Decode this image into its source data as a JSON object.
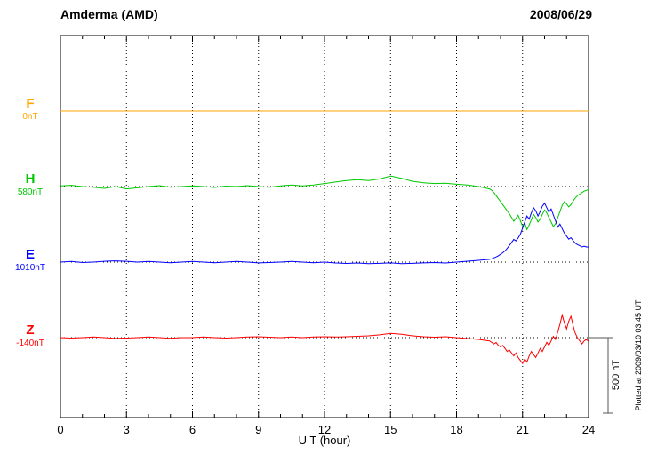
{
  "header": {
    "station": "Amderma (AMD)",
    "date": "2008/06/29"
  },
  "axis": {
    "xlabel": "U T (hour)",
    "x_ticks": [
      0,
      3,
      6,
      9,
      12,
      15,
      18,
      21,
      24
    ],
    "x_min": 0,
    "x_max": 24
  },
  "scale_bar": {
    "label": "500 nT",
    "nt": 500
  },
  "footer_note": "Plotted at 2009/03/10 03:45 UT",
  "chart_data": {
    "type": "line",
    "title": "Amderma (AMD) magnetogram 2008/06/29",
    "xlabel": "U T (hour)",
    "x_unit": "hour",
    "x_range": [
      0,
      24
    ],
    "grid": "dotted vertical every 3h, dotted horizontal at each component baseline",
    "legend_position": "left labels per trace",
    "scale": {
      "nt": 500,
      "px": 85
    },
    "series": [
      {
        "name": "F",
        "label": "F",
        "baseline_label": "0nT",
        "baseline_nt": 0,
        "color": "#FFA500",
        "points": [
          [
            0,
            0
          ],
          [
            24,
            0
          ]
        ]
      },
      {
        "name": "H",
        "label": "H",
        "baseline_label": "580nT",
        "baseline_nt": 580,
        "color": "#00C800",
        "points": [
          [
            0,
            5
          ],
          [
            0.5,
            8
          ],
          [
            1,
            0
          ],
          [
            1.5,
            -5
          ],
          [
            2,
            -12
          ],
          [
            2.5,
            0
          ],
          [
            3,
            -15
          ],
          [
            3.5,
            -8
          ],
          [
            4,
            0
          ],
          [
            4.5,
            6
          ],
          [
            5,
            -5
          ],
          [
            5.5,
            0
          ],
          [
            6,
            5
          ],
          [
            6.5,
            0
          ],
          [
            7,
            -6
          ],
          [
            7.5,
            3
          ],
          [
            8,
            0
          ],
          [
            8.5,
            6
          ],
          [
            9,
            0
          ],
          [
            9.5,
            -4
          ],
          [
            10,
            5
          ],
          [
            10.5,
            10
          ],
          [
            11,
            5
          ],
          [
            11.5,
            10
          ],
          [
            12,
            20
          ],
          [
            12.5,
            30
          ],
          [
            13,
            40
          ],
          [
            13.5,
            45
          ],
          [
            14,
            40
          ],
          [
            14.5,
            50
          ],
          [
            15,
            70
          ],
          [
            15.5,
            55
          ],
          [
            16,
            35
          ],
          [
            16.5,
            25
          ],
          [
            17,
            20
          ],
          [
            17.5,
            22
          ],
          [
            18,
            15
          ],
          [
            18.5,
            10
          ],
          [
            19,
            0
          ],
          [
            19.5,
            -15
          ],
          [
            19.6,
            -25
          ],
          [
            19.7,
            -40
          ],
          [
            19.8,
            -60
          ],
          [
            19.9,
            -80
          ],
          [
            20,
            -100
          ],
          [
            20.1,
            -120
          ],
          [
            20.2,
            -140
          ],
          [
            20.3,
            -160
          ],
          [
            20.4,
            -180
          ],
          [
            20.5,
            -205
          ],
          [
            20.6,
            -230
          ],
          [
            20.7,
            -210
          ],
          [
            20.8,
            -190
          ],
          [
            20.9,
            -225
          ],
          [
            21,
            -265
          ],
          [
            21.1,
            -240
          ],
          [
            21.2,
            -285
          ],
          [
            21.3,
            -255
          ],
          [
            21.4,
            -220
          ],
          [
            21.5,
            -185
          ],
          [
            21.6,
            -205
          ],
          [
            21.7,
            -235
          ],
          [
            21.8,
            -215
          ],
          [
            21.9,
            -185
          ],
          [
            22,
            -155
          ],
          [
            22.1,
            -175
          ],
          [
            22.2,
            -205
          ],
          [
            22.3,
            -235
          ],
          [
            22.4,
            -265
          ],
          [
            22.5,
            -245
          ],
          [
            22.6,
            -205
          ],
          [
            22.7,
            -165
          ],
          [
            22.8,
            -125
          ],
          [
            22.9,
            -100
          ],
          [
            23,
            -115
          ],
          [
            23.1,
            -135
          ],
          [
            23.2,
            -120
          ],
          [
            23.3,
            -95
          ],
          [
            23.4,
            -75
          ],
          [
            23.5,
            -60
          ],
          [
            23.6,
            -50
          ],
          [
            23.7,
            -40
          ],
          [
            23.8,
            -30
          ],
          [
            23.9,
            -25
          ],
          [
            24,
            -20
          ]
        ]
      },
      {
        "name": "E",
        "label": "E",
        "baseline_label": "1010nT",
        "baseline_nt": 1010,
        "color": "#0000FF",
        "points": [
          [
            0,
            0
          ],
          [
            0.5,
            4
          ],
          [
            1,
            -3
          ],
          [
            1.5,
            0
          ],
          [
            2,
            5
          ],
          [
            2.5,
            8
          ],
          [
            3,
            5
          ],
          [
            3.5,
            0
          ],
          [
            4,
            4
          ],
          [
            4.5,
            0
          ],
          [
            5,
            -4
          ],
          [
            5.5,
            0
          ],
          [
            6,
            4
          ],
          [
            6.5,
            0
          ],
          [
            7,
            -4
          ],
          [
            7.5,
            0
          ],
          [
            8,
            4
          ],
          [
            8.5,
            0
          ],
          [
            9,
            -5
          ],
          [
            9.5,
            -3
          ],
          [
            10,
            0
          ],
          [
            10.5,
            4
          ],
          [
            11,
            0
          ],
          [
            11.5,
            -4
          ],
          [
            12,
            0
          ],
          [
            12.5,
            -6
          ],
          [
            13,
            -9
          ],
          [
            13.5,
            -6
          ],
          [
            14,
            -10
          ],
          [
            14.5,
            -8
          ],
          [
            15,
            -5
          ],
          [
            15.5,
            -10
          ],
          [
            16,
            -8
          ],
          [
            16.5,
            -5
          ],
          [
            17,
            -3
          ],
          [
            17.5,
            -6
          ],
          [
            18,
            0
          ],
          [
            18.5,
            6
          ],
          [
            19,
            12
          ],
          [
            19.5,
            18
          ],
          [
            19.6,
            22
          ],
          [
            19.7,
            28
          ],
          [
            19.8,
            34
          ],
          [
            19.9,
            42
          ],
          [
            20,
            52
          ],
          [
            20.1,
            62
          ],
          [
            20.2,
            74
          ],
          [
            20.3,
            90
          ],
          [
            20.4,
            110
          ],
          [
            20.5,
            130
          ],
          [
            20.6,
            150
          ],
          [
            20.7,
            140
          ],
          [
            20.8,
            160
          ],
          [
            20.9,
            185
          ],
          [
            21,
            225
          ],
          [
            21.1,
            265
          ],
          [
            21.2,
            305
          ],
          [
            21.3,
            285
          ],
          [
            21.4,
            325
          ],
          [
            21.5,
            360
          ],
          [
            21.6,
            340
          ],
          [
            21.7,
            305
          ],
          [
            21.8,
            335
          ],
          [
            21.9,
            370
          ],
          [
            22,
            390
          ],
          [
            22.1,
            360
          ],
          [
            22.2,
            330
          ],
          [
            22.3,
            352
          ],
          [
            22.4,
            312
          ],
          [
            22.5,
            272
          ],
          [
            22.6,
            232
          ],
          [
            22.7,
            252
          ],
          [
            22.8,
            222
          ],
          [
            22.9,
            192
          ],
          [
            23,
            172
          ],
          [
            23.1,
            152
          ],
          [
            23.2,
            162
          ],
          [
            23.3,
            142
          ],
          [
            23.4,
            125
          ],
          [
            23.5,
            115
          ],
          [
            23.6,
            108
          ],
          [
            23.7,
            100
          ],
          [
            23.8,
            105
          ],
          [
            23.9,
            100
          ],
          [
            24,
            100
          ]
        ]
      },
      {
        "name": "Z",
        "label": "Z",
        "baseline_label": "-140nT",
        "baseline_nt": -140,
        "color": "#FF0000",
        "points": [
          [
            0,
            0
          ],
          [
            0.5,
            -3
          ],
          [
            1,
            0
          ],
          [
            1.5,
            4
          ],
          [
            2,
            0
          ],
          [
            2.5,
            -5
          ],
          [
            3,
            -3
          ],
          [
            3.5,
            0
          ],
          [
            4,
            4
          ],
          [
            4.5,
            0
          ],
          [
            5,
            -4
          ],
          [
            5.5,
            0
          ],
          [
            6,
            0
          ],
          [
            6.5,
            4
          ],
          [
            7,
            0
          ],
          [
            7.5,
            -3
          ],
          [
            8,
            0
          ],
          [
            8.5,
            4
          ],
          [
            9,
            6
          ],
          [
            9.5,
            3
          ],
          [
            10,
            0
          ],
          [
            10.5,
            4
          ],
          [
            11,
            0
          ],
          [
            11.5,
            4
          ],
          [
            12,
            6
          ],
          [
            12.5,
            4
          ],
          [
            13,
            6
          ],
          [
            13.5,
            9
          ],
          [
            14,
            12
          ],
          [
            14.5,
            18
          ],
          [
            15,
            28
          ],
          [
            15.5,
            22
          ],
          [
            16,
            12
          ],
          [
            16.5,
            6
          ],
          [
            17,
            3
          ],
          [
            17.5,
            6
          ],
          [
            18,
            0
          ],
          [
            18.5,
            -6
          ],
          [
            19,
            -12
          ],
          [
            19.5,
            -22
          ],
          [
            19.6,
            -32
          ],
          [
            19.7,
            -42
          ],
          [
            19.8,
            -32
          ],
          [
            19.9,
            -52
          ],
          [
            20,
            -62
          ],
          [
            20.1,
            -52
          ],
          [
            20.2,
            -72
          ],
          [
            20.3,
            -92
          ],
          [
            20.4,
            -82
          ],
          [
            20.5,
            -102
          ],
          [
            20.6,
            -122
          ],
          [
            20.7,
            -102
          ],
          [
            20.8,
            -132
          ],
          [
            20.9,
            -152
          ],
          [
            21,
            -172
          ],
          [
            21.1,
            -142
          ],
          [
            21.2,
            -162
          ],
          [
            21.3,
            -122
          ],
          [
            21.4,
            -92
          ],
          [
            21.5,
            -112
          ],
          [
            21.6,
            -132
          ],
          [
            21.7,
            -102
          ],
          [
            21.8,
            -72
          ],
          [
            21.9,
            -92
          ],
          [
            22,
            -62
          ],
          [
            22.1,
            -32
          ],
          [
            22.2,
            -52
          ],
          [
            22.3,
            -22
          ],
          [
            22.4,
            8
          ],
          [
            22.5,
            -12
          ],
          [
            22.6,
            38
          ],
          [
            22.7,
            88
          ],
          [
            22.8,
            150
          ],
          [
            22.9,
            98
          ],
          [
            23,
            58
          ],
          [
            23.1,
            108
          ],
          [
            23.2,
            142
          ],
          [
            23.3,
            78
          ],
          [
            23.4,
            28
          ],
          [
            23.5,
            -2
          ],
          [
            23.6,
            -22
          ],
          [
            23.7,
            -42
          ],
          [
            23.8,
            -22
          ],
          [
            23.9,
            -12
          ],
          [
            24,
            -25
          ]
        ]
      }
    ]
  }
}
